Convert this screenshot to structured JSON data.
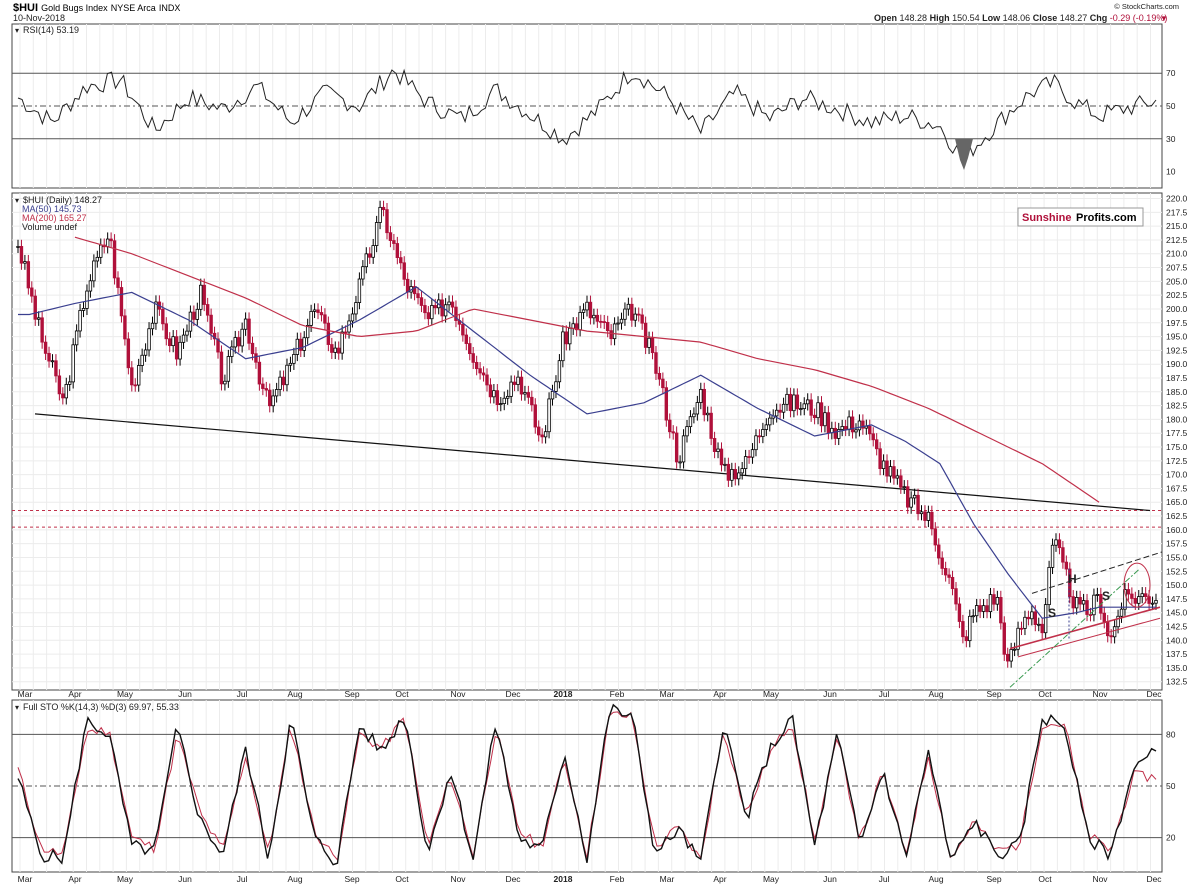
{
  "header": {
    "symbol": "$HUI",
    "name": "Gold Bugs Index",
    "exchange": "NYSE Arca",
    "type": "INDX",
    "date": "10-Nov-2018",
    "open_label": "Open",
    "open": "148.28",
    "high_label": "High",
    "high": "150.54",
    "low_label": "Low",
    "low": "148.06",
    "close_label": "Close",
    "close": "148.27",
    "chg_label": "Chg",
    "chg": "-0.29 (-0.19%)",
    "watermark": "© StockCharts.com"
  },
  "brand": {
    "part1": "Sunshine",
    "part2": "Profits.com"
  },
  "colors": {
    "price_up": "#000000",
    "price_down": "#b0103a",
    "ma50": "#3a3f8f",
    "ma200": "#c0304a",
    "sto_d": "#c0304a",
    "rsi_fill": "#666666"
  },
  "chart_data": [
    {
      "type": "line",
      "title": "RSI(14) 53.19",
      "ylim": [
        0,
        100
      ],
      "y_ticks": [
        70,
        50,
        30,
        10
      ],
      "levels": [
        70,
        50,
        30
      ],
      "series": [
        {
          "name": "RSI(14)",
          "x": [
            0,
            0.03,
            0.06,
            0.09,
            0.12,
            0.15,
            0.18,
            0.21,
            0.24,
            0.27,
            0.3,
            0.33,
            0.36,
            0.39,
            0.42,
            0.45,
            0.48,
            0.51,
            0.54,
            0.57,
            0.6,
            0.63,
            0.66,
            0.69,
            0.72,
            0.75,
            0.78,
            0.81,
            0.83,
            0.85,
            0.87,
            0.89,
            0.91,
            0.93,
            0.95,
            0.97,
            1.0
          ],
          "values": [
            55,
            40,
            62,
            66,
            35,
            55,
            48,
            62,
            40,
            58,
            50,
            72,
            52,
            42,
            60,
            45,
            30,
            48,
            72,
            56,
            34,
            58,
            42,
            55,
            48,
            40,
            44,
            38,
            18,
            32,
            46,
            58,
            64,
            52,
            44,
            48,
            53
          ]
        }
      ]
    },
    {
      "type": "candlestick",
      "title": "$HUI (Daily) 148.27",
      "legend": [
        {
          "name": "MA(50) 145.73"
        },
        {
          "name": "MA(200) 165.27"
        },
        {
          "name": "Volume undef"
        }
      ],
      "ylim": [
        131,
        221
      ],
      "y_ticks": [
        220.0,
        217.5,
        215.0,
        212.5,
        210.0,
        207.5,
        205.0,
        202.5,
        200.0,
        197.5,
        195.0,
        192.5,
        190.0,
        187.5,
        185.0,
        182.5,
        180.0,
        177.5,
        175.0,
        172.5,
        170.0,
        167.5,
        165.0,
        162.5,
        160.0,
        157.5,
        155.0,
        152.5,
        150.0,
        147.5,
        145.0,
        142.5,
        140.0,
        137.5,
        135.0,
        132.5
      ],
      "x_labels": [
        "Mar",
        "Apr",
        "May",
        "Jun",
        "Jul",
        "Aug",
        "Sep",
        "Oct",
        "Nov",
        "Dec",
        "2018",
        "Feb",
        "Mar",
        "Apr",
        "May",
        "Jun",
        "Jul",
        "Aug",
        "Sep",
        "Oct",
        "Nov",
        "Dec"
      ],
      "close": {
        "x": [
          0,
          0.02,
          0.04,
          0.06,
          0.08,
          0.1,
          0.12,
          0.14,
          0.16,
          0.18,
          0.2,
          0.22,
          0.24,
          0.26,
          0.28,
          0.3,
          0.32,
          0.34,
          0.36,
          0.38,
          0.4,
          0.42,
          0.44,
          0.46,
          0.48,
          0.5,
          0.52,
          0.54,
          0.56,
          0.58,
          0.6,
          0.62,
          0.64,
          0.66,
          0.68,
          0.7,
          0.72,
          0.74,
          0.76,
          0.78,
          0.8,
          0.82,
          0.83,
          0.84,
          0.86,
          0.87,
          0.88,
          0.89,
          0.9,
          0.91,
          0.92,
          0.93,
          0.94,
          0.95,
          0.96,
          0.97,
          0.98
        ],
        "values": [
          212,
          195,
          183,
          204,
          214,
          186,
          200,
          192,
          203,
          187,
          198,
          182,
          190,
          200,
          192,
          204,
          218,
          205,
          198,
          202,
          192,
          184,
          188,
          176,
          195,
          200,
          195,
          200,
          190,
          173,
          185,
          170,
          172,
          182,
          183,
          182,
          178,
          180,
          172,
          166,
          162,
          150,
          140,
          145,
          148,
          135,
          142,
          146,
          142,
          158,
          152,
          146,
          145,
          148,
          140,
          147,
          148
        ]
      },
      "ma50": {
        "x": [
          0.01,
          0.05,
          0.1,
          0.15,
          0.2,
          0.25,
          0.3,
          0.35,
          0.4,
          0.45,
          0.5,
          0.55,
          0.6,
          0.65,
          0.7,
          0.75,
          0.78,
          0.81,
          0.84,
          0.87,
          0.9,
          0.93,
          0.95
        ],
        "values": [
          199,
          201,
          203,
          198,
          191,
          193,
          198,
          204,
          196,
          188,
          181,
          183,
          188,
          182,
          177,
          179,
          176,
          172,
          161,
          152,
          144,
          145,
          146
        ]
      },
      "ma200": {
        "x": [
          0.05,
          0.1,
          0.15,
          0.2,
          0.25,
          0.3,
          0.35,
          0.4,
          0.45,
          0.5,
          0.55,
          0.6,
          0.65,
          0.7,
          0.75,
          0.8,
          0.85,
          0.9,
          0.95
        ],
        "values": [
          213,
          210,
          206,
          202,
          197,
          195,
          196,
          200,
          198,
          196,
          195,
          194,
          191,
          189,
          186,
          182,
          177,
          172,
          165
        ]
      },
      "levels": [
        163.5,
        160.5
      ],
      "annotations": [
        "S",
        "H",
        "S"
      ]
    },
    {
      "type": "line",
      "title": "Full STO %K(14,3) %D(3) 69.97, 55.33",
      "ylim": [
        0,
        100
      ],
      "y_ticks": [
        80,
        50,
        20
      ],
      "levels": [
        80,
        50,
        20
      ],
      "series": [
        {
          "name": "%K(14,3)",
          "x": [
            0,
            0.02,
            0.04,
            0.06,
            0.08,
            0.1,
            0.12,
            0.14,
            0.16,
            0.18,
            0.2,
            0.22,
            0.24,
            0.26,
            0.28,
            0.3,
            0.32,
            0.34,
            0.36,
            0.38,
            0.4,
            0.42,
            0.44,
            0.46,
            0.48,
            0.5,
            0.52,
            0.54,
            0.56,
            0.58,
            0.6,
            0.62,
            0.64,
            0.66,
            0.68,
            0.7,
            0.72,
            0.74,
            0.76,
            0.78,
            0.8,
            0.82,
            0.84,
            0.86,
            0.88,
            0.9,
            0.92,
            0.94,
            0.96,
            0.98,
            1.0
          ],
          "values": [
            55,
            10,
            8,
            88,
            80,
            15,
            12,
            85,
            30,
            10,
            72,
            8,
            90,
            20,
            5,
            85,
            70,
            92,
            10,
            60,
            8,
            88,
            20,
            12,
            70,
            8,
            95,
            90,
            10,
            25,
            5,
            88,
            30,
            70,
            90,
            15,
            80,
            15,
            60,
            8,
            70,
            5,
            30,
            10,
            15,
            90,
            85,
            20,
            10,
            60,
            70
          ]
        },
        {
          "name": "%D(3)",
          "x": [
            0,
            0.02,
            0.04,
            0.06,
            0.08,
            0.1,
            0.12,
            0.14,
            0.16,
            0.18,
            0.2,
            0.22,
            0.24,
            0.26,
            0.28,
            0.3,
            0.32,
            0.34,
            0.36,
            0.38,
            0.4,
            0.42,
            0.44,
            0.46,
            0.48,
            0.5,
            0.52,
            0.54,
            0.56,
            0.58,
            0.6,
            0.62,
            0.64,
            0.66,
            0.68,
            0.7,
            0.72,
            0.74,
            0.76,
            0.78,
            0.8,
            0.82,
            0.84,
            0.86,
            0.88,
            0.9,
            0.92,
            0.94,
            0.96,
            0.98,
            1.0
          ],
          "values": [
            60,
            14,
            10,
            82,
            82,
            20,
            14,
            80,
            34,
            12,
            68,
            10,
            86,
            24,
            7,
            80,
            72,
            90,
            14,
            56,
            10,
            84,
            24,
            14,
            66,
            10,
            92,
            90,
            14,
            26,
            7,
            84,
            32,
            68,
            88,
            18,
            78,
            18,
            58,
            10,
            68,
            7,
            30,
            12,
            16,
            86,
            86,
            22,
            12,
            56,
            55
          ]
        }
      ]
    }
  ]
}
